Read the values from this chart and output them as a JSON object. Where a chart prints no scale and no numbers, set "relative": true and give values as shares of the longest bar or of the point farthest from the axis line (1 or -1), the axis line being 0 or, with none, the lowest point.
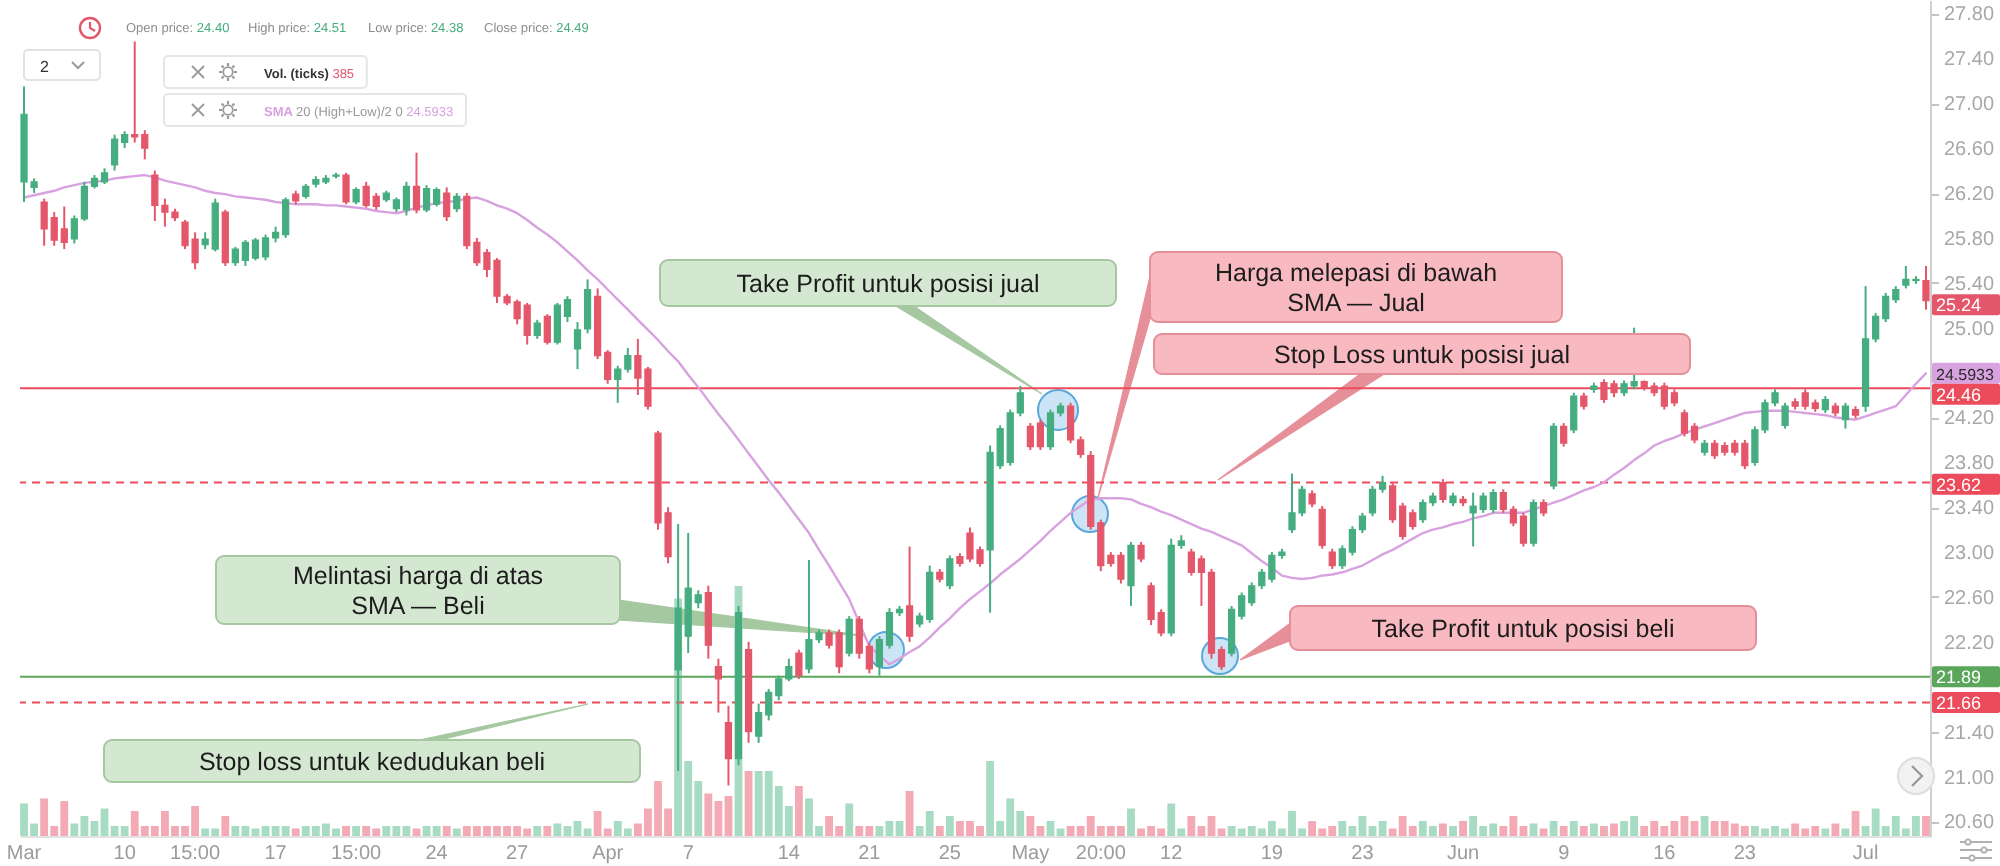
{
  "chart_data": [
    {
      "type": "candlestick",
      "categories": [
        "Mar",
        null,
        null,
        null,
        null,
        null,
        null,
        null,
        null,
        null,
        "10",
        null,
        null,
        null,
        null,
        null,
        null,
        "15:00",
        null,
        null,
        null,
        null,
        null,
        null,
        null,
        "17",
        null,
        null,
        null,
        null,
        null,
        null,
        null,
        "15:00",
        null,
        null,
        null,
        null,
        null,
        null,
        null,
        "24",
        null,
        null,
        null,
        null,
        null,
        null,
        null,
        "27",
        null,
        null,
        null,
        null,
        null,
        null,
        null,
        null,
        "Apr",
        null,
        null,
        null,
        null,
        null,
        null,
        null,
        "7",
        null,
        null,
        null,
        null,
        null,
        null,
        null,
        null,
        null,
        "14",
        null,
        null,
        null,
        null,
        null,
        null,
        null,
        "21",
        null,
        null,
        null,
        null,
        null,
        null,
        null,
        "25",
        null,
        null,
        null,
        null,
        null,
        null,
        null,
        "May",
        null,
        null,
        null,
        null,
        null,
        null,
        "20:00",
        null,
        null,
        null,
        null,
        null,
        null,
        "12",
        null,
        null,
        null,
        null,
        null,
        null,
        null,
        null,
        null,
        "19",
        null,
        null,
        null,
        null,
        null,
        null,
        null,
        null,
        "23",
        null,
        null,
        null,
        null,
        null,
        null,
        null,
        null,
        null,
        "Jun",
        null,
        null,
        null,
        null,
        null,
        null,
        null,
        null,
        null,
        "9",
        null,
        null,
        null,
        null,
        null,
        null,
        null,
        null,
        null,
        "16",
        null,
        null,
        null,
        null,
        null,
        null,
        null,
        "23",
        null,
        null,
        null,
        null,
        null,
        null,
        null,
        null,
        null,
        null,
        null,
        "Jul",
        null,
        null,
        null,
        null,
        null,
        null
      ],
      "ohlc": [
        [
          26.3,
          27.15,
          26.12,
          26.9
        ],
        [
          26.25,
          26.33,
          26.2,
          26.3
        ],
        [
          26.12,
          26.15,
          25.73,
          25.88
        ],
        [
          25.98,
          26.03,
          25.73,
          25.78
        ],
        [
          25.88,
          26.08,
          25.7,
          25.76
        ],
        [
          25.79,
          26,
          25.75,
          25.97
        ],
        [
          25.97,
          26.3,
          25.95,
          26.26
        ],
        [
          26.26,
          26.36,
          26.24,
          26.33
        ],
        [
          26.3,
          26.42,
          26.28,
          26.38
        ],
        [
          26.45,
          26.72,
          26.4,
          26.68
        ],
        [
          26.65,
          26.75,
          26.6,
          26.72
        ],
        [
          26.72,
          27.55,
          26.65,
          26.7
        ],
        [
          26.72,
          26.76,
          26.5,
          26.6
        ],
        [
          26.36,
          26.4,
          25.95,
          26.09
        ],
        [
          26.09,
          26.15,
          25.9,
          26.03
        ],
        [
          26.03,
          26.06,
          25.95,
          25.98
        ],
        [
          25.94,
          25.96,
          25.7,
          25.73
        ],
        [
          25.79,
          25.85,
          25.52,
          25.58
        ],
        [
          25.74,
          25.85,
          25.7,
          25.79
        ],
        [
          25.7,
          26.15,
          25.68,
          26.11
        ],
        [
          26.03,
          26.05,
          25.55,
          25.58
        ],
        [
          25.58,
          25.72,
          25.55,
          25.7
        ],
        [
          25.6,
          25.78,
          25.55,
          25.76
        ],
        [
          25.62,
          25.8,
          25.6,
          25.78
        ],
        [
          25.63,
          25.83,
          25.6,
          25.8
        ],
        [
          25.8,
          25.9,
          25.76,
          25.85
        ],
        [
          25.83,
          26.16,
          25.8,
          26.14
        ],
        [
          26.19,
          26.22,
          26.1,
          26.13
        ],
        [
          26.17,
          26.28,
          26.15,
          26.26
        ],
        [
          26.28,
          26.35,
          26.25,
          26.32
        ],
        [
          26.3,
          26.36,
          26.28,
          26.33
        ],
        [
          26.35,
          26.38,
          26.33,
          26.36
        ],
        [
          26.36,
          26.38,
          26.1,
          26.12
        ],
        [
          26.12,
          26.25,
          26.1,
          26.23
        ],
        [
          26.26,
          26.3,
          26.07,
          26.09
        ],
        [
          26.17,
          26.2,
          26.05,
          26.08
        ],
        [
          26.14,
          26.22,
          26.12,
          26.2
        ],
        [
          26.06,
          26.16,
          26.03,
          26.14
        ],
        [
          26.05,
          26.3,
          26,
          26.26
        ],
        [
          26.26,
          26.56,
          26.02,
          26.05
        ],
        [
          26.05,
          26.27,
          26.03,
          26.24
        ],
        [
          26.1,
          26.25,
          26.08,
          26.23
        ],
        [
          26.2,
          26.25,
          25.95,
          25.99
        ],
        [
          26.06,
          26.2,
          26.03,
          26.17
        ],
        [
          26.17,
          26.2,
          25.7,
          25.73
        ],
        [
          25.76,
          25.8,
          25.55,
          25.58
        ],
        [
          25.67,
          25.7,
          25.45,
          25.52
        ],
        [
          25.6,
          25.62,
          25.22,
          25.28
        ],
        [
          25.28,
          25.3,
          25.2,
          25.22
        ],
        [
          25.23,
          25.25,
          25.03,
          25.08
        ],
        [
          25.2,
          25.22,
          24.85,
          24.93
        ],
        [
          24.93,
          25.07,
          24.9,
          25.04
        ],
        [
          25.1,
          25.12,
          24.85,
          24.87
        ],
        [
          24.87,
          25.22,
          24.85,
          25.2
        ],
        [
          25.1,
          25.28,
          25.05,
          25.25
        ],
        [
          24.81,
          25.05,
          24.63,
          24.98
        ],
        [
          24.99,
          25.43,
          24.95,
          25.34
        ],
        [
          25.28,
          25.35,
          24.72,
          24.75
        ],
        [
          24.78,
          24.8,
          24.5,
          24.54
        ],
        [
          24.54,
          24.66,
          24.33,
          24.63
        ],
        [
          24.63,
          24.82,
          24.6,
          24.75
        ],
        [
          24.75,
          24.9,
          24.4,
          24.55
        ],
        [
          24.63,
          24.65,
          24.27,
          24.3
        ],
        [
          24.06,
          24.08,
          23.2,
          23.26
        ],
        [
          23.35,
          23.4,
          22.9,
          22.96
        ],
        [
          21.95,
          23.25,
          21.05,
          22.5
        ],
        [
          22.25,
          23.17,
          22.1,
          22.68
        ],
        [
          22.55,
          22.66,
          22.5,
          22.62
        ],
        [
          22.64,
          22.7,
          22.05,
          22.17
        ],
        [
          21.98,
          22.05,
          21.57,
          21.87
        ],
        [
          21.48,
          21.63,
          20.92,
          21.16
        ],
        [
          21.16,
          22.52,
          21.1,
          22.46
        ],
        [
          22.13,
          22.2,
          21.3,
          21.4
        ],
        [
          21.36,
          21.65,
          21.3,
          21.57
        ],
        [
          21.55,
          21.78,
          21.5,
          21.75
        ],
        [
          21.72,
          21.9,
          21.68,
          21.87
        ],
        [
          21.87,
          22.05,
          21.85,
          21.98
        ],
        [
          22.1,
          22.13,
          21.87,
          21.9
        ],
        [
          21.96,
          22.93,
          21.92,
          22.22
        ],
        [
          22.22,
          22.31,
          22.19,
          22.28
        ],
        [
          22.28,
          22.31,
          22.14,
          22.17
        ],
        [
          22.28,
          22.31,
          21.92,
          21.98
        ],
        [
          22.1,
          22.43,
          22.07,
          22.4
        ],
        [
          22.4,
          22.43,
          22.05,
          22.1
        ],
        [
          22.16,
          22.19,
          21.92,
          21.96
        ],
        [
          21.98,
          22.25,
          21.9,
          22.22
        ],
        [
          22.17,
          22.5,
          22.14,
          22.46
        ],
        [
          22.46,
          22.52,
          22.43,
          22.49
        ],
        [
          22.52,
          23.05,
          22.2,
          22.25
        ],
        [
          22.36,
          22.46,
          22.33,
          22.43
        ],
        [
          22.4,
          22.88,
          22.37,
          22.82
        ],
        [
          22.82,
          22.85,
          22.73,
          22.76
        ],
        [
          22.7,
          22.97,
          22.67,
          22.94
        ],
        [
          22.96,
          22.99,
          22.87,
          22.9
        ],
        [
          23.17,
          23.22,
          22.91,
          22.94
        ],
        [
          23.02,
          23.05,
          22.87,
          22.9
        ],
        [
          23.02,
          23.95,
          22.46,
          23.89
        ],
        [
          23.77,
          24.13,
          23.74,
          24.1
        ],
        [
          23.8,
          24.27,
          23.77,
          24.24
        ],
        [
          24.24,
          24.48,
          24.21,
          24.42
        ],
        [
          24.12,
          24.15,
          23.91,
          23.94
        ],
        [
          24.15,
          24.18,
          23.91,
          23.94
        ],
        [
          23.94,
          24.27,
          23.91,
          24.24
        ],
        [
          24.24,
          24.33,
          24.21,
          24.3
        ],
        [
          24.3,
          24.33,
          23.97,
          24
        ],
        [
          24,
          24.03,
          23.84,
          23.87
        ],
        [
          23.86,
          23.9,
          23.2,
          23.23
        ],
        [
          23.26,
          23.29,
          22.83,
          22.88
        ],
        [
          22.97,
          23,
          22.87,
          22.9
        ],
        [
          22.97,
          23,
          22.72,
          22.76
        ],
        [
          22.7,
          23.09,
          22.52,
          23.06
        ],
        [
          23.06,
          23.09,
          22.91,
          22.94
        ],
        [
          22.7,
          22.73,
          22.35,
          22.4
        ],
        [
          22.46,
          22.49,
          22.25,
          22.28
        ],
        [
          22.28,
          23.12,
          22.25,
          23.06
        ],
        [
          23.06,
          23.15,
          23.03,
          23.1
        ],
        [
          23,
          23.03,
          22.79,
          22.82
        ],
        [
          22.94,
          22.97,
          22.52,
          22.82
        ],
        [
          22.82,
          22.85,
          22.05,
          22.1
        ],
        [
          22.13,
          22.16,
          21.95,
          21.98
        ],
        [
          22.1,
          22.52,
          22.07,
          22.49
        ],
        [
          22.43,
          22.64,
          22.4,
          22.61
        ],
        [
          22.55,
          22.73,
          22.52,
          22.7
        ],
        [
          22.7,
          22.85,
          22.67,
          22.82
        ],
        [
          22.76,
          23,
          22.73,
          22.97
        ],
        [
          22.97,
          23.03,
          22.94,
          23
        ],
        [
          23.2,
          23.7,
          23.17,
          23.35
        ],
        [
          23.35,
          23.59,
          23.32,
          23.56
        ],
        [
          23.52,
          23.55,
          23.4,
          23.43
        ],
        [
          23.38,
          23.41,
          23.03,
          23.06
        ],
        [
          23,
          23.03,
          22.85,
          22.88
        ],
        [
          22.88,
          23.06,
          22.85,
          23.03
        ],
        [
          23,
          23.23,
          22.97,
          23.2
        ],
        [
          23.2,
          23.35,
          23.17,
          23.32
        ],
        [
          23.35,
          23.59,
          23.32,
          23.56
        ],
        [
          23.56,
          23.68,
          23.53,
          23.62
        ],
        [
          23.59,
          23.62,
          23.26,
          23.29
        ],
        [
          23.41,
          23.44,
          23.11,
          23.14
        ],
        [
          23.35,
          23.38,
          23.2,
          23.23
        ],
        [
          23.29,
          23.47,
          23.26,
          23.44
        ],
        [
          23.44,
          23.53,
          23.41,
          23.5
        ],
        [
          23.62,
          23.65,
          23.44,
          23.47
        ],
        [
          23.44,
          23.53,
          23.41,
          23.5
        ],
        [
          23.47,
          23.5,
          23.41,
          23.44
        ],
        [
          23.35,
          23.53,
          23.05,
          23.41
        ],
        [
          23.38,
          23.53,
          23.35,
          23.5
        ],
        [
          23.38,
          23.56,
          23.35,
          23.53
        ],
        [
          23.53,
          23.56,
          23.35,
          23.38
        ],
        [
          23.38,
          23.41,
          23.23,
          23.26
        ],
        [
          23.32,
          23.35,
          23.05,
          23.08
        ],
        [
          23.08,
          23.47,
          23.05,
          23.44
        ],
        [
          23.44,
          23.47,
          23.32,
          23.35
        ],
        [
          23.59,
          24.15,
          23.56,
          24.12
        ],
        [
          24.12,
          24.15,
          23.94,
          23.97
        ],
        [
          24.09,
          24.42,
          24.06,
          24.39
        ],
        [
          24.39,
          24.42,
          24.27,
          24.3
        ],
        [
          24.45,
          24.51,
          24.42,
          24.48
        ],
        [
          24.51,
          24.54,
          24.33,
          24.36
        ],
        [
          24.5,
          24.53,
          24.38,
          24.42
        ],
        [
          24.42,
          24.53,
          24.39,
          24.5
        ],
        [
          24.48,
          25,
          24.45,
          24.52
        ],
        [
          24.52,
          24.53,
          24.44,
          24.47
        ],
        [
          24.48,
          24.51,
          24.39,
          24.42
        ],
        [
          24.48,
          24.51,
          24.27,
          24.3
        ],
        [
          24.42,
          24.45,
          24.3,
          24.33
        ],
        [
          24.24,
          24.27,
          24.03,
          24.06
        ],
        [
          24.12,
          24.15,
          23.97,
          24
        ],
        [
          23.89,
          24,
          23.86,
          23.97
        ],
        [
          23.97,
          24,
          23.83,
          23.86
        ],
        [
          23.95,
          23.98,
          23.86,
          23.89
        ],
        [
          23.97,
          24,
          23.86,
          23.89
        ],
        [
          23.97,
          24,
          23.74,
          23.77
        ],
        [
          23.8,
          24.12,
          23.77,
          24.09
        ],
        [
          24.09,
          24.36,
          24.06,
          24.33
        ],
        [
          24.33,
          24.45,
          24.3,
          24.42
        ],
        [
          24.13,
          24.33,
          24.1,
          24.3
        ],
        [
          24.34,
          24.37,
          24.27,
          24.3
        ],
        [
          24.42,
          24.45,
          24.27,
          24.3
        ],
        [
          24.33,
          24.36,
          24.25,
          24.28
        ],
        [
          24.27,
          24.39,
          24.24,
          24.36
        ],
        [
          24.3,
          24.33,
          24.21,
          24.24
        ],
        [
          24.18,
          24.33,
          24.1,
          24.3
        ],
        [
          24.27,
          24.3,
          24.19,
          24.22
        ],
        [
          24.3,
          25.37,
          24.25,
          24.9
        ],
        [
          24.9,
          25.13,
          24.87,
          25.1
        ],
        [
          25.08,
          25.31,
          25.05,
          25.28
        ],
        [
          25.25,
          25.37,
          25.22,
          25.34
        ],
        [
          25.38,
          25.55,
          25.35,
          25.43
        ],
        [
          25.42,
          25.46,
          25.39,
          25.43
        ],
        [
          25.42,
          25.55,
          25.16,
          25.24
        ]
      ],
      "colors": [
        "#45ad7f",
        "#45ad7f",
        "#e4576b",
        "#e4576b",
        "#e4576b",
        "#45ad7f",
        "#45ad7f",
        "#45ad7f",
        "#45ad7f",
        "#45ad7f",
        "#45ad7f",
        "#e4576b",
        "#e4576b",
        "#e4576b",
        "#e4576b",
        "#e4576b",
        "#e4576b",
        "#e4576b",
        "#45ad7f",
        "#45ad7f",
        "#e4576b",
        "#45ad7f",
        "#45ad7f",
        "#45ad7f",
        "#45ad7f",
        "#45ad7f",
        "#45ad7f",
        "#e4576b",
        "#45ad7f",
        "#45ad7f",
        "#45ad7f",
        "#45ad7f",
        "#e4576b",
        "#45ad7f",
        "#e4576b",
        "#e4576b",
        "#45ad7f",
        "#45ad7f",
        "#45ad7f",
        "#e4576b",
        "#45ad7f",
        "#45ad7f",
        "#e4576b",
        "#45ad7f",
        "#e4576b",
        "#e4576b",
        "#e4576b",
        "#e4576b",
        "#e4576b",
        "#e4576b",
        "#e4576b",
        "#45ad7f",
        "#e4576b",
        "#45ad7f",
        "#45ad7f",
        "#45ad7f",
        "#45ad7f",
        "#e4576b",
        "#e4576b",
        "#45ad7f",
        "#45ad7f",
        "#e4576b",
        "#e4576b",
        "#e4576b",
        "#e4576b",
        "#45ad7f",
        "#45ad7f",
        "#45ad7f",
        "#e4576b",
        "#e4576b",
        "#e4576b",
        "#45ad7f",
        "#e4576b",
        "#45ad7f",
        "#45ad7f",
        "#45ad7f",
        "#45ad7f",
        "#e4576b",
        "#45ad7f",
        "#45ad7f",
        "#e4576b",
        "#e4576b",
        "#45ad7f",
        "#e4576b",
        "#e4576b",
        "#45ad7f",
        "#45ad7f",
        "#45ad7f",
        "#e4576b",
        "#45ad7f",
        "#45ad7f",
        "#e4576b",
        "#45ad7f",
        "#e4576b",
        "#e4576b",
        "#e4576b",
        "#45ad7f",
        "#45ad7f",
        "#45ad7f",
        "#45ad7f",
        "#e4576b",
        "#e4576b",
        "#45ad7f",
        "#45ad7f",
        "#e4576b",
        "#e4576b",
        "#e4576b",
        "#e4576b",
        "#e4576b",
        "#e4576b",
        "#45ad7f",
        "#e4576b",
        "#e4576b",
        "#e4576b",
        "#45ad7f",
        "#45ad7f",
        "#e4576b",
        "#e4576b",
        "#e4576b",
        "#e4576b",
        "#45ad7f",
        "#45ad7f",
        "#45ad7f",
        "#45ad7f",
        "#45ad7f",
        "#45ad7f",
        "#45ad7f",
        "#45ad7f",
        "#e4576b",
        "#e4576b",
        "#e4576b",
        "#45ad7f",
        "#45ad7f",
        "#45ad7f",
        "#45ad7f",
        "#45ad7f",
        "#e4576b",
        "#e4576b",
        "#e4576b",
        "#45ad7f",
        "#45ad7f",
        "#e4576b",
        "#45ad7f",
        "#e4576b",
        "#45ad7f",
        "#45ad7f",
        "#45ad7f",
        "#e4576b",
        "#e4576b",
        "#e4576b",
        "#45ad7f",
        "#e4576b",
        "#45ad7f",
        "#e4576b",
        "#45ad7f",
        "#e4576b",
        "#45ad7f",
        "#e4576b",
        "#e4576b",
        "#45ad7f",
        "#45ad7f",
        "#e4576b",
        "#e4576b",
        "#e4576b",
        "#e4576b",
        "#e4576b",
        "#e4576b",
        "#45ad7f",
        "#e4576b",
        "#e4576b",
        "#e4576b",
        "#e4576b",
        "#45ad7f",
        "#45ad7f",
        "#45ad7f",
        "#45ad7f",
        "#e4576b",
        "#e4576b",
        "#e4576b",
        "#45ad7f",
        "#e4576b",
        "#45ad7f",
        "#e4576b",
        "#45ad7f",
        "#45ad7f",
        "#45ad7f",
        "#45ad7f",
        "#45ad7f",
        "#45ad7f",
        "#e4576b"
      ],
      "series": [
        {
          "name": "SMA",
          "type": "line",
          "color": "#d8a2e0",
          "values": [
            26.16,
            26.18,
            26.2,
            26.22,
            26.25,
            26.27,
            26.29,
            26.3,
            26.31,
            26.33,
            26.34,
            26.35,
            26.36,
            26.34,
            26.31,
            26.29,
            26.27,
            26.25,
            26.22,
            26.2,
            26.19,
            26.17,
            26.16,
            26.15,
            26.14,
            26.12,
            26.11,
            26.1,
            26.1,
            26.1,
            26.09,
            26.09,
            26.08,
            26.07,
            26.06,
            26.04,
            26.03,
            26.02,
            26.04,
            26.07,
            26.09,
            26.11,
            26.12,
            26.13,
            26.15,
            26.16,
            26.13,
            26.09,
            26.06,
            26.02,
            25.96,
            25.89,
            25.83,
            25.76,
            25.68,
            25.6,
            25.51,
            25.43,
            25.34,
            25.25,
            25.16,
            25.07,
            24.98,
            24.89,
            24.79,
            24.7,
            24.58,
            24.47,
            24.35,
            24.23,
            24.12,
            24,
            23.88,
            23.76,
            23.64,
            23.53,
            23.41,
            23.29,
            23.17,
            23.02,
            22.88,
            22.73,
            22.58,
            22.37,
            22.16,
            22.08,
            22,
            22.05,
            22.11,
            22.16,
            22.24,
            22.33,
            22.41,
            22.5,
            22.58,
            22.65,
            22.72,
            22.8,
            22.87,
            22.94,
            23.02,
            23.1,
            23.19,
            23.27,
            23.35,
            23.41,
            23.47,
            23.48,
            23.48,
            23.48,
            23.47,
            23.43,
            23.4,
            23.36,
            23.33,
            23.29,
            23.25,
            23.21,
            23.18,
            23.14,
            23.1,
            23.06,
            22.99,
            22.92,
            22.86,
            22.79,
            22.77,
            22.76,
            22.77,
            22.79,
            22.8,
            22.82,
            22.85,
            22.88,
            22.93,
            22.98,
            23.02,
            23.07,
            23.12,
            23.17,
            23.2,
            23.22,
            23.25,
            23.27,
            23.3,
            23.32,
            23.35,
            23.35,
            23.35,
            23.35,
            23.38,
            23.41,
            23.44,
            23.47,
            23.51,
            23.55,
            23.58,
            23.62,
            23.69,
            23.75,
            23.82,
            23.88,
            23.95,
            23.99,
            24.02,
            24.06,
            24.09,
            24.12,
            24.15,
            24.18,
            24.21,
            24.24,
            24.25,
            24.26,
            24.26,
            24.26,
            24.25,
            24.24,
            24.23,
            24.22,
            24.2,
            24.19,
            24.18,
            24.21,
            24.24,
            24.27,
            24.3,
            24.4,
            24.5,
            24.5933
          ]
        }
      ],
      "ylim": [
        20.47,
        27.92
      ],
      "yticks": [
        {
          "value": 20.6,
          "label": "20.60"
        },
        {
          "value": 21,
          "label": "21.00"
        },
        {
          "value": 21.4,
          "label": "21.40"
        },
        {
          "value": 22.2,
          "label": "22.20"
        },
        {
          "value": 22.6,
          "label": "22.60"
        },
        {
          "value": 23,
          "label": "23.00"
        },
        {
          "value": 23.4,
          "label": "23.40"
        },
        {
          "value": 23.8,
          "label": "23.80"
        },
        {
          "value": 24.2,
          "label": "24.20"
        },
        {
          "value": 25,
          "label": "25.00"
        },
        {
          "value": 25.4,
          "label": "25.40"
        },
        {
          "value": 25.8,
          "label": "25.80"
        },
        {
          "value": 26.2,
          "label": "26.20"
        },
        {
          "value": 26.6,
          "label": "26.60"
        },
        {
          "value": 27,
          "label": "27.00"
        },
        {
          "value": 27.4,
          "label": "27.40"
        },
        {
          "value": 27.8,
          "label": "27.80"
        }
      ],
      "ref_lines": [
        {
          "axis": "y",
          "value": 24.46,
          "label": "24.46",
          "color": "#ec4b5b",
          "line_style": "solid"
        },
        {
          "axis": "y",
          "value": 23.62,
          "label": "23.62",
          "color": "#ec4b5b",
          "line_style": "dashed"
        },
        {
          "axis": "y",
          "value": 21.89,
          "label": "21.89",
          "color": "#5ba65b",
          "line_style": "solid"
        },
        {
          "axis": "y",
          "value": 21.66,
          "label": "21.66",
          "color": "#ec4b5b",
          "line_style": "dashed"
        }
      ],
      "annotations": [
        "Open price: 24.40",
        "High price: 24.51",
        "Low price: 24.38",
        "Close price: 24.49",
        "2",
        "20 (High+Low)/2 0 24.5933",
        "Take Profit untuk posisi jual",
        "Harga melepasi di bawah SMA — Jual",
        "Stop Loss untuk posisi jual",
        "Melintasi harga di atas SMA — Beli",
        "Take Profit untuk posisi beli",
        "Stop loss untuk kedudukan beli",
        "25.24",
        {
          "text": "24.5933",
          "y": 24.5933
        }
      ]
    },
    {
      "type": "bar",
      "relative": true,
      "categories": [
        null,
        null,
        null,
        null,
        null,
        null,
        null,
        null,
        null,
        null,
        null,
        null,
        null,
        null,
        null,
        null,
        null,
        null,
        null,
        null,
        null,
        null,
        null,
        null,
        null,
        null,
        null,
        null,
        null,
        null,
        null,
        null,
        null,
        null,
        null,
        null,
        null,
        null,
        null,
        null,
        null,
        null,
        null,
        null,
        null,
        null,
        null,
        null,
        null,
        null,
        null,
        null,
        null,
        null,
        null,
        null,
        null,
        null,
        null,
        null,
        null,
        null,
        null,
        null,
        null,
        null,
        null,
        null,
        null,
        null,
        null,
        null,
        null,
        null,
        null,
        null,
        null,
        null,
        null,
        null,
        null,
        null,
        null,
        null,
        null,
        null,
        null,
        null,
        null,
        null,
        null,
        null,
        null,
        null,
        null,
        null,
        null,
        null,
        null,
        null,
        null,
        null,
        null,
        null,
        null,
        null,
        null,
        null,
        null,
        null,
        null,
        null,
        null,
        null,
        null,
        null,
        null,
        null,
        null,
        null,
        null,
        null,
        null,
        null,
        null,
        null,
        null,
        null,
        null,
        null,
        null,
        null,
        null,
        null,
        null,
        null,
        null,
        null,
        null,
        null,
        null,
        null,
        null,
        null,
        null,
        null,
        null,
        null,
        null,
        null,
        null,
        null,
        null,
        null,
        null,
        null,
        null,
        null,
        null,
        null,
        null,
        null,
        null,
        null,
        null,
        null,
        null,
        null,
        null,
        null,
        null,
        null,
        null,
        null,
        null,
        null,
        null,
        null,
        null,
        null,
        null,
        null,
        null,
        null,
        null,
        null,
        null,
        null,
        null,
        null
      ],
      "values": [
        0.13,
        0.05,
        0.15,
        0.04,
        0.14,
        0.05,
        0.08,
        0.06,
        0.11,
        0.04,
        0.04,
        0.1,
        0.04,
        0.04,
        0.1,
        0.04,
        0.04,
        0.12,
        0.03,
        0.03,
        0.08,
        0.04,
        0.04,
        0.03,
        0.04,
        0.04,
        0.04,
        0.03,
        0.04,
        0.04,
        0.05,
        0.03,
        0.04,
        0.04,
        0.04,
        0.03,
        0.04,
        0.04,
        0.04,
        0.03,
        0.04,
        0.04,
        0.04,
        0.03,
        0.04,
        0.04,
        0.04,
        0.04,
        0.04,
        0.04,
        0.03,
        0.04,
        0.04,
        0.05,
        0.04,
        0.06,
        0.03,
        0.1,
        0.03,
        0.06,
        0.03,
        0.05,
        0.11,
        0.22,
        0.11,
        0.95,
        0.3,
        0.22,
        0.17,
        0.14,
        0.16,
        1,
        0.26,
        0.26,
        0.26,
        0.2,
        0.12,
        0.2,
        0.15,
        0.04,
        0.08,
        0.04,
        0.13,
        0.04,
        0.04,
        0.04,
        0.06,
        0.06,
        0.18,
        0.04,
        0.1,
        0.04,
        0.08,
        0.06,
        0.06,
        0.04,
        0.3,
        0.06,
        0.15,
        0.1,
        0.08,
        0.04,
        0.06,
        0.03,
        0.04,
        0.04,
        0.08,
        0.04,
        0.04,
        0.04,
        0.11,
        0.03,
        0.04,
        0.03,
        0.13,
        0.03,
        0.08,
        0.04,
        0.08,
        0.03,
        0.04,
        0.03,
        0.04,
        0.03,
        0.06,
        0.03,
        0.1,
        0.03,
        0.06,
        0.03,
        0.04,
        0.06,
        0.04,
        0.08,
        0.04,
        0.06,
        0.03,
        0.08,
        0.04,
        0.06,
        0.04,
        0.05,
        0.04,
        0.06,
        0.08,
        0.04,
        0.05,
        0.04,
        0.08,
        0.04,
        0.05,
        0.03,
        0.06,
        0.04,
        0.06,
        0.04,
        0.05,
        0.04,
        0.05,
        0.06,
        0.08,
        0.04,
        0.06,
        0.04,
        0.06,
        0.08,
        0.06,
        0.08,
        0.06,
        0.06,
        0.05,
        0.04,
        0.04,
        0.03,
        0.04,
        0.03,
        0.05,
        0.03,
        0.04,
        0.03,
        0.05,
        0.03,
        0.1,
        0.04,
        0.11,
        0.04,
        0.08,
        0.03,
        0.08,
        0.08
      ],
      "colors": [
        "#a8dbc3",
        "#a8dbc3",
        "#f3aab4",
        "#f3aab4",
        "#f3aab4",
        "#a8dbc3",
        "#a8dbc3",
        "#a8dbc3",
        "#a8dbc3",
        "#a8dbc3",
        "#a8dbc3",
        "#f3aab4",
        "#f3aab4",
        "#f3aab4",
        "#f3aab4",
        "#f3aab4",
        "#f3aab4",
        "#f3aab4",
        "#a8dbc3",
        "#a8dbc3",
        "#f3aab4",
        "#a8dbc3",
        "#a8dbc3",
        "#a8dbc3",
        "#a8dbc3",
        "#a8dbc3",
        "#a8dbc3",
        "#f3aab4",
        "#a8dbc3",
        "#a8dbc3",
        "#a8dbc3",
        "#a8dbc3",
        "#f3aab4",
        "#a8dbc3",
        "#f3aab4",
        "#f3aab4",
        "#a8dbc3",
        "#a8dbc3",
        "#a8dbc3",
        "#f3aab4",
        "#a8dbc3",
        "#a8dbc3",
        "#f3aab4",
        "#a8dbc3",
        "#f3aab4",
        "#f3aab4",
        "#f3aab4",
        "#f3aab4",
        "#f3aab4",
        "#f3aab4",
        "#f3aab4",
        "#a8dbc3",
        "#f3aab4",
        "#a8dbc3",
        "#a8dbc3",
        "#a8dbc3",
        "#a8dbc3",
        "#f3aab4",
        "#f3aab4",
        "#a8dbc3",
        "#a8dbc3",
        "#f3aab4",
        "#f3aab4",
        "#f3aab4",
        "#f3aab4",
        "#a8dbc3",
        "#a8dbc3",
        "#a8dbc3",
        "#f3aab4",
        "#f3aab4",
        "#f3aab4",
        "#a8dbc3",
        "#f3aab4",
        "#a8dbc3",
        "#a8dbc3",
        "#a8dbc3",
        "#a8dbc3",
        "#f3aab4",
        "#a8dbc3",
        "#a8dbc3",
        "#f3aab4",
        "#f3aab4",
        "#a8dbc3",
        "#f3aab4",
        "#f3aab4",
        "#a8dbc3",
        "#a8dbc3",
        "#a8dbc3",
        "#f3aab4",
        "#a8dbc3",
        "#a8dbc3",
        "#f3aab4",
        "#a8dbc3",
        "#f3aab4",
        "#f3aab4",
        "#f3aab4",
        "#a8dbc3",
        "#a8dbc3",
        "#a8dbc3",
        "#a8dbc3",
        "#f3aab4",
        "#f3aab4",
        "#a8dbc3",
        "#a8dbc3",
        "#f3aab4",
        "#f3aab4",
        "#f3aab4",
        "#f3aab4",
        "#f3aab4",
        "#f3aab4",
        "#a8dbc3",
        "#f3aab4",
        "#f3aab4",
        "#f3aab4",
        "#a8dbc3",
        "#a8dbc3",
        "#f3aab4",
        "#f3aab4",
        "#f3aab4",
        "#f3aab4",
        "#a8dbc3",
        "#a8dbc3",
        "#a8dbc3",
        "#a8dbc3",
        "#a8dbc3",
        "#a8dbc3",
        "#a8dbc3",
        "#a8dbc3",
        "#f3aab4",
        "#f3aab4",
        "#f3aab4",
        "#a8dbc3",
        "#a8dbc3",
        "#a8dbc3",
        "#a8dbc3",
        "#a8dbc3",
        "#f3aab4",
        "#f3aab4",
        "#f3aab4",
        "#a8dbc3",
        "#a8dbc3",
        "#f3aab4",
        "#a8dbc3",
        "#f3aab4",
        "#a8dbc3",
        "#a8dbc3",
        "#a8dbc3",
        "#f3aab4",
        "#f3aab4",
        "#f3aab4",
        "#a8dbc3",
        "#f3aab4",
        "#a8dbc3",
        "#f3aab4",
        "#a8dbc3",
        "#f3aab4",
        "#a8dbc3",
        "#f3aab4",
        "#f3aab4",
        "#a8dbc3",
        "#a8dbc3",
        "#f3aab4",
        "#f3aab4",
        "#f3aab4",
        "#f3aab4",
        "#f3aab4",
        "#f3aab4",
        "#a8dbc3",
        "#f3aab4",
        "#f3aab4",
        "#f3aab4",
        "#f3aab4",
        "#a8dbc3",
        "#a8dbc3",
        "#a8dbc3",
        "#a8dbc3",
        "#f3aab4",
        "#f3aab4",
        "#f3aab4",
        "#a8dbc3",
        "#f3aab4",
        "#a8dbc3",
        "#f3aab4",
        "#a8dbc3",
        "#a8dbc3",
        "#a8dbc3",
        "#a8dbc3",
        "#a8dbc3",
        "#a8dbc3",
        "#f3aab4"
      ],
      "annotations": [
        "Vol. (ticks) 385"
      ]
    }
  ]
}
